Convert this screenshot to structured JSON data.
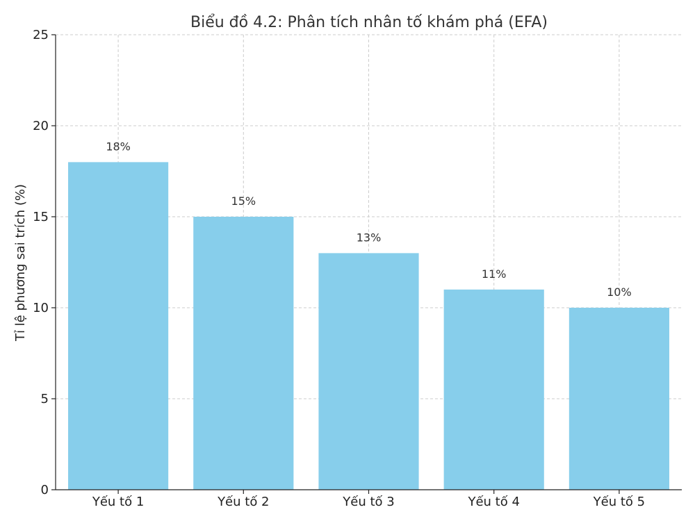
{
  "chart_data": {
    "type": "bar",
    "title": "Biểu đồ 4.2: Phân tích nhân tố khám phá (EFA)",
    "xlabel": "",
    "ylabel": "Tỉ lệ phương sai trích (%)",
    "categories": [
      "Yếu tố 1",
      "Yếu tố 2",
      "Yếu tố 3",
      "Yếu tố 4",
      "Yếu tố 5"
    ],
    "values": [
      18,
      15,
      13,
      11,
      10
    ],
    "data_labels": [
      "18%",
      "15%",
      "13%",
      "11%",
      "10%"
    ],
    "ylim": [
      0,
      25
    ],
    "yticks": [
      0,
      5,
      10,
      15,
      20,
      25
    ],
    "grid": true,
    "colors": {
      "bar": "#87ceeb"
    }
  }
}
